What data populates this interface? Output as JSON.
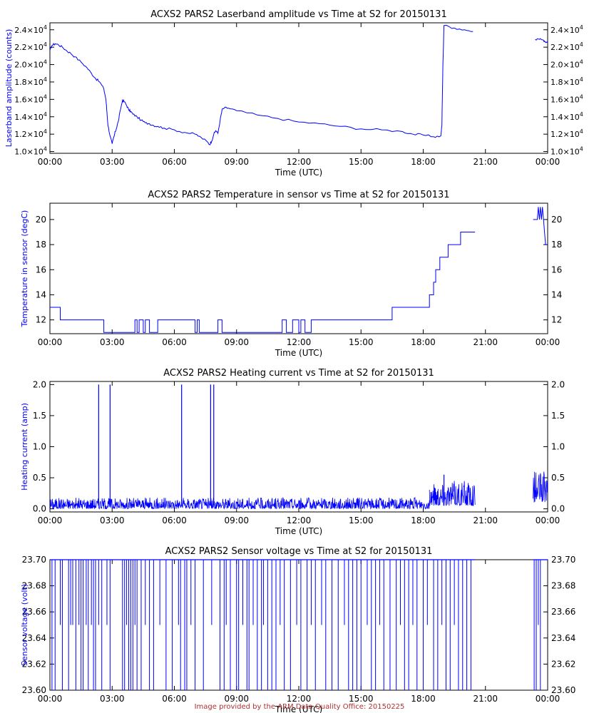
{
  "footer": "Image provided by the ARM Data Quality Office: 20150225",
  "colors": {
    "series": "#0000ff",
    "axes": "#000000",
    "text": "#000000",
    "ylabel": "#0000ff",
    "footer": "#b03030"
  },
  "chart_data": [
    {
      "type": "line",
      "title": "ACXS2 PARS2 Laserband amplitude vs Time at S2 for 20150131",
      "xlabel": "Time (UTC)",
      "ylabel": "Laserband amplitude (counts)",
      "xlim": [
        0,
        24
      ],
      "ylim": [
        9800,
        24800
      ],
      "x_ticks": [
        "00:00",
        "03:00",
        "06:00",
        "09:00",
        "12:00",
        "15:00",
        "18:00",
        "21:00",
        "00:00"
      ],
      "y_ticks": [
        {
          "value": 10000,
          "mant": "1.0"
        },
        {
          "value": 12000,
          "mant": "1.2"
        },
        {
          "value": 14000,
          "mant": "1.4"
        },
        {
          "value": 16000,
          "mant": "1.6"
        },
        {
          "value": 18000,
          "mant": "1.8"
        },
        {
          "value": 20000,
          "mant": "2.0"
        },
        {
          "value": 22000,
          "mant": "2.2"
        },
        {
          "value": 24000,
          "mant": "2.4"
        }
      ],
      "y_tick_suffix": "×10",
      "y_tick_exp": "4",
      "grid": false,
      "series": [
        {
          "x": [
            0,
            0.1,
            0.25,
            0.4,
            0.6,
            0.8,
            1.0,
            1.2,
            1.5,
            1.8,
            2.0,
            2.2,
            2.4,
            2.6,
            2.7,
            2.75,
            2.8,
            2.9,
            3.0,
            3.1,
            3.15,
            3.2,
            3.3,
            3.4,
            3.5,
            3.6,
            3.7,
            3.8,
            3.9,
            4.0,
            4.2,
            4.4,
            4.6,
            4.8,
            5.0,
            5.2,
            5.5,
            6.0,
            6.5,
            7.0,
            7.3,
            7.6,
            7.7,
            7.8,
            7.9,
            8.0,
            8.1,
            8.2,
            8.3,
            8.4,
            8.6,
            9.0,
            10.0,
            11.0,
            12.0,
            13.0,
            14.0,
            15.0,
            16.0,
            17.0,
            17.5,
            18.0,
            18.5,
            18.85,
            18.9,
            18.95,
            19.0,
            19.5,
            20.0,
            20.4
          ],
          "y": [
            21600,
            22200,
            22400,
            22300,
            22000,
            21600,
            21300,
            20900,
            20300,
            19600,
            19000,
            18400,
            18000,
            17200,
            16000,
            14500,
            13000,
            11800,
            10900,
            11800,
            12300,
            12600,
            13500,
            14800,
            15900,
            15700,
            15300,
            14800,
            14600,
            14300,
            14000,
            13600,
            13300,
            13200,
            13000,
            12900,
            12700,
            12500,
            12200,
            12000,
            11600,
            11100,
            10800,
            11200,
            12000,
            12400,
            12100,
            13500,
            14800,
            15000,
            15000,
            14700,
            14200,
            13800,
            13400,
            13200,
            12900,
            12600,
            12500,
            12300,
            12000,
            11900,
            11700,
            11800,
            13000,
            20000,
            24500,
            24200,
            24000,
            23800
          ]
        },
        {
          "x": [
            23.4,
            23.6,
            23.8,
            23.9,
            24.0
          ],
          "y": [
            22900,
            22900,
            22800,
            22600,
            22700
          ]
        }
      ]
    },
    {
      "type": "line",
      "title": "ACXS2 PARS2 Temperature in sensor vs Time at S2 for 20150131",
      "xlabel": "Time (UTC)",
      "ylabel": "Temperature in sensor (degC)",
      "xlim": [
        0,
        24
      ],
      "ylim": [
        10.9,
        21.3
      ],
      "x_ticks": [
        "00:00",
        "03:00",
        "06:00",
        "09:00",
        "12:00",
        "15:00",
        "18:00",
        "21:00",
        "00:00"
      ],
      "y_ticks": [
        {
          "value": 12,
          "label": "12"
        },
        {
          "value": 14,
          "label": "14"
        },
        {
          "value": 16,
          "label": "16"
        },
        {
          "value": 18,
          "label": "18"
        },
        {
          "value": 20,
          "label": "20"
        }
      ],
      "grid": false,
      "series": [
        {
          "x": [
            0,
            0.5,
            0.5,
            2.6,
            2.6,
            4.1,
            4.1,
            4.2,
            4.2,
            4.3,
            4.3,
            4.5,
            4.5,
            4.6,
            4.6,
            4.8,
            4.8,
            5.2,
            5.2,
            7.0,
            7.0,
            7.1,
            7.1,
            7.2,
            7.2,
            8.1,
            8.1,
            8.3,
            8.3,
            11.2,
            11.2,
            11.4,
            11.4,
            11.7,
            11.7,
            12.0,
            12.0,
            12.1,
            12.1,
            12.3,
            12.3,
            12.6,
            12.6,
            16.5,
            16.5,
            18.3,
            18.3,
            18.5,
            18.5,
            18.6,
            18.6,
            18.8,
            18.8,
            19.0,
            19.0,
            19.2,
            19.2,
            19.8,
            19.8,
            20.2,
            20.2,
            20.5
          ],
          "y": [
            13,
            13,
            12,
            12,
            11,
            11,
            12,
            12,
            11,
            11,
            12,
            12,
            11,
            11,
            12,
            12,
            11,
            11,
            12,
            12,
            11,
            11,
            12,
            12,
            11,
            11,
            12,
            12,
            11,
            11,
            12,
            12,
            11,
            11,
            12,
            12,
            11,
            11,
            12,
            12,
            11,
            11,
            12,
            12,
            13,
            13,
            14,
            14,
            15,
            15,
            16,
            16,
            17,
            17,
            17,
            17,
            18,
            18,
            19,
            19,
            19,
            19
          ]
        },
        {
          "x": [
            23.3,
            23.5,
            23.55,
            23.6,
            23.65,
            23.7,
            23.75,
            23.8,
            23.85,
            23.9,
            24.0
          ],
          "y": [
            20,
            20,
            21,
            20,
            21,
            20,
            21,
            20,
            19,
            18,
            18
          ]
        }
      ]
    },
    {
      "type": "line",
      "title": "ACXS2 PARS2 Heating current vs Time at S2 for 20150131",
      "xlabel": "Time (UTC)",
      "ylabel": "Heating current (amp)",
      "xlim": [
        0,
        24
      ],
      "ylim": [
        -0.05,
        2.05
      ],
      "x_ticks": [
        "00:00",
        "03:00",
        "06:00",
        "09:00",
        "12:00",
        "15:00",
        "18:00",
        "21:00",
        "00:00"
      ],
      "y_ticks": [
        {
          "value": 0,
          "label": "0.0"
        },
        {
          "value": 0.5,
          "label": "0.5"
        },
        {
          "value": 1.0,
          "label": "1.0"
        },
        {
          "value": 1.5,
          "label": "1.5"
        },
        {
          "value": 2.0,
          "label": "2.0"
        }
      ],
      "grid": false,
      "noise_ranges": [
        {
          "x0": 0,
          "x1": 18.3,
          "lo": 0.0,
          "hi": 0.18
        },
        {
          "x0": 18.3,
          "x1": 20.5,
          "lo": 0.05,
          "hi": 0.45
        },
        {
          "x0": 23.3,
          "x1": 24.0,
          "lo": 0.1,
          "hi": 0.6
        }
      ],
      "spikes": [
        {
          "x": 2.35,
          "y": 2.0
        },
        {
          "x": 2.9,
          "y": 2.0
        },
        {
          "x": 6.35,
          "y": 2.0
        },
        {
          "x": 7.75,
          "y": 2.0
        },
        {
          "x": 7.9,
          "y": 2.0
        },
        {
          "x": 19.0,
          "y": 0.55
        }
      ]
    },
    {
      "type": "line",
      "title": "ACXS2 PARS2 Sensor voltage vs Time at S2 for 20150131",
      "xlabel": "Time (UTC)",
      "ylabel": "Sensor voltage (volt)",
      "xlim": [
        0,
        24
      ],
      "ylim": [
        23.6,
        23.7
      ],
      "x_ticks": [
        "00:00",
        "03:00",
        "06:00",
        "09:00",
        "12:00",
        "15:00",
        "18:00",
        "21:00",
        "00:00"
      ],
      "y_ticks": [
        {
          "value": 23.6,
          "label": "23.60"
        },
        {
          "value": 23.62,
          "label": "23.62"
        },
        {
          "value": 23.64,
          "label": "23.64"
        },
        {
          "value": 23.66,
          "label": "23.66"
        },
        {
          "value": 23.68,
          "label": "23.68"
        },
        {
          "value": 23.7,
          "label": "23.70"
        }
      ],
      "grid": false,
      "base_value": 23.7,
      "coverage": [
        [
          0,
          20.5
        ],
        [
          23.3,
          24.0
        ]
      ],
      "dips": [
        {
          "x": 0.1,
          "y": 23.6
        },
        {
          "x": 0.25,
          "y": 23.6
        },
        {
          "x": 0.5,
          "y": 23.65
        },
        {
          "x": 0.6,
          "y": 23.6
        },
        {
          "x": 0.9,
          "y": 23.6
        },
        {
          "x": 1.0,
          "y": 23.65
        },
        {
          "x": 1.1,
          "y": 23.65
        },
        {
          "x": 1.25,
          "y": 23.6
        },
        {
          "x": 1.4,
          "y": 23.65
        },
        {
          "x": 1.5,
          "y": 23.6
        },
        {
          "x": 1.6,
          "y": 23.6
        },
        {
          "x": 1.75,
          "y": 23.65
        },
        {
          "x": 1.85,
          "y": 23.6
        },
        {
          "x": 2.0,
          "y": 23.65
        },
        {
          "x": 2.1,
          "y": 23.6
        },
        {
          "x": 2.2,
          "y": 23.6
        },
        {
          "x": 2.35,
          "y": 23.65
        },
        {
          "x": 2.5,
          "y": 23.6
        },
        {
          "x": 2.75,
          "y": 23.65
        },
        {
          "x": 2.9,
          "y": 23.6
        },
        {
          "x": 3.5,
          "y": 23.6
        },
        {
          "x": 3.6,
          "y": 23.6
        },
        {
          "x": 3.7,
          "y": 23.65
        },
        {
          "x": 3.8,
          "y": 23.6
        },
        {
          "x": 3.9,
          "y": 23.6
        },
        {
          "x": 4.0,
          "y": 23.6
        },
        {
          "x": 4.1,
          "y": 23.65
        },
        {
          "x": 4.2,
          "y": 23.6
        },
        {
          "x": 4.4,
          "y": 23.6
        },
        {
          "x": 4.6,
          "y": 23.65
        },
        {
          "x": 4.8,
          "y": 23.6
        },
        {
          "x": 5.0,
          "y": 23.6
        },
        {
          "x": 5.3,
          "y": 23.65
        },
        {
          "x": 5.6,
          "y": 23.6
        },
        {
          "x": 5.9,
          "y": 23.6
        },
        {
          "x": 6.2,
          "y": 23.65
        },
        {
          "x": 6.3,
          "y": 23.6
        },
        {
          "x": 6.5,
          "y": 23.6
        },
        {
          "x": 6.6,
          "y": 23.6
        },
        {
          "x": 6.8,
          "y": 23.65
        },
        {
          "x": 7.0,
          "y": 23.6
        },
        {
          "x": 7.4,
          "y": 23.6
        },
        {
          "x": 7.8,
          "y": 23.65
        },
        {
          "x": 8.2,
          "y": 23.6
        },
        {
          "x": 8.4,
          "y": 23.6
        },
        {
          "x": 8.5,
          "y": 23.65
        },
        {
          "x": 8.7,
          "y": 23.6
        },
        {
          "x": 9.0,
          "y": 23.6
        },
        {
          "x": 9.1,
          "y": 23.6
        },
        {
          "x": 9.3,
          "y": 23.65
        },
        {
          "x": 9.5,
          "y": 23.6
        },
        {
          "x": 9.6,
          "y": 23.6
        },
        {
          "x": 9.8,
          "y": 23.65
        },
        {
          "x": 10.0,
          "y": 23.6
        },
        {
          "x": 10.2,
          "y": 23.6
        },
        {
          "x": 10.3,
          "y": 23.65
        },
        {
          "x": 10.5,
          "y": 23.6
        },
        {
          "x": 10.7,
          "y": 23.6
        },
        {
          "x": 10.9,
          "y": 23.6
        },
        {
          "x": 11.1,
          "y": 23.65
        },
        {
          "x": 11.3,
          "y": 23.6
        },
        {
          "x": 11.6,
          "y": 23.6
        },
        {
          "x": 11.9,
          "y": 23.65
        },
        {
          "x": 12.1,
          "y": 23.6
        },
        {
          "x": 12.4,
          "y": 23.6
        },
        {
          "x": 12.6,
          "y": 23.65
        },
        {
          "x": 12.8,
          "y": 23.6
        },
        {
          "x": 13.1,
          "y": 23.65
        },
        {
          "x": 13.3,
          "y": 23.6
        },
        {
          "x": 13.6,
          "y": 23.6
        },
        {
          "x": 13.9,
          "y": 23.6
        },
        {
          "x": 14.2,
          "y": 23.65
        },
        {
          "x": 14.4,
          "y": 23.6
        },
        {
          "x": 14.6,
          "y": 23.6
        },
        {
          "x": 14.8,
          "y": 23.6
        },
        {
          "x": 15.0,
          "y": 23.6
        },
        {
          "x": 15.3,
          "y": 23.65
        },
        {
          "x": 15.5,
          "y": 23.6
        },
        {
          "x": 15.7,
          "y": 23.6
        },
        {
          "x": 15.9,
          "y": 23.65
        },
        {
          "x": 16.1,
          "y": 23.6
        },
        {
          "x": 16.4,
          "y": 23.6
        },
        {
          "x": 16.7,
          "y": 23.6
        },
        {
          "x": 16.9,
          "y": 23.65
        },
        {
          "x": 17.1,
          "y": 23.6
        },
        {
          "x": 17.3,
          "y": 23.6
        },
        {
          "x": 17.5,
          "y": 23.65
        },
        {
          "x": 17.7,
          "y": 23.6
        },
        {
          "x": 18.0,
          "y": 23.6
        },
        {
          "x": 18.2,
          "y": 23.65
        },
        {
          "x": 18.5,
          "y": 23.6
        },
        {
          "x": 18.7,
          "y": 23.6
        },
        {
          "x": 18.9,
          "y": 23.65
        },
        {
          "x": 19.1,
          "y": 23.6
        },
        {
          "x": 19.3,
          "y": 23.6
        },
        {
          "x": 19.5,
          "y": 23.65
        },
        {
          "x": 19.7,
          "y": 23.6
        },
        {
          "x": 19.9,
          "y": 23.6
        },
        {
          "x": 20.1,
          "y": 23.6
        },
        {
          "x": 20.3,
          "y": 23.6
        },
        {
          "x": 23.35,
          "y": 23.6
        },
        {
          "x": 23.45,
          "y": 23.6
        },
        {
          "x": 23.55,
          "y": 23.65
        },
        {
          "x": 23.65,
          "y": 23.6
        }
      ]
    }
  ]
}
